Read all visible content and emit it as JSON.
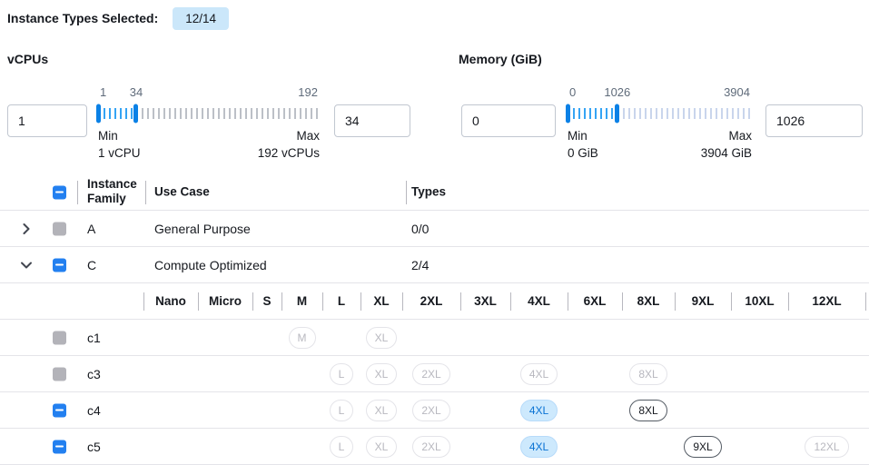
{
  "header": {
    "label": "Instance Types Selected:",
    "badge": "12/14"
  },
  "filters": {
    "vcpus": {
      "title": "vCPUs",
      "min_value": "1",
      "max_value": "34",
      "scale_labels": [
        "1",
        "34",
        "192"
      ],
      "min_label": "Min",
      "min_sub": "1 vCPU",
      "max_label": "Max",
      "max_sub": "192 vCPUs"
    },
    "memory": {
      "title": "Memory (GiB)",
      "min_value": "0",
      "max_value": "1026",
      "scale_labels": [
        "0",
        "1026",
        "3904"
      ],
      "min_label": "Min",
      "min_sub": "0 GiB",
      "max_label": "Max",
      "max_sub": "3904 GiB"
    }
  },
  "table": {
    "columns": {
      "family": "Instance Family",
      "use_case": "Use Case",
      "types": "Types"
    },
    "select_all_state": "indeterminate",
    "family_rows": [
      {
        "family": "A",
        "use_case": "General Purpose",
        "types": "0/0",
        "expanded": false,
        "checkbox": "disabled"
      },
      {
        "family": "C",
        "use_case": "Compute Optimized",
        "types": "2/4",
        "expanded": true,
        "checkbox": "indeterminate"
      }
    ],
    "size_columns": [
      "Nano",
      "Micro",
      "S",
      "M",
      "L",
      "XL",
      "2XL",
      "3XL",
      "4XL",
      "6XL",
      "8XL",
      "9XL",
      "10XL",
      "12XL"
    ],
    "instance_rows": [
      {
        "name": "c1",
        "checkbox": "disabled",
        "pills": {
          "M": "disabled",
          "XL": "disabled"
        }
      },
      {
        "name": "c3",
        "checkbox": "disabled",
        "pills": {
          "L": "disabled",
          "XL": "disabled",
          "2XL": "disabled",
          "4XL": "disabled",
          "8XL": "disabled"
        }
      },
      {
        "name": "c4",
        "checkbox": "indeterminate",
        "pills": {
          "L": "disabled",
          "XL": "disabled",
          "2XL": "disabled",
          "4XL": "selected",
          "8XL": "enabled"
        }
      },
      {
        "name": "c5",
        "checkbox": "indeterminate",
        "pills": {
          "L": "disabled",
          "XL": "disabled",
          "2XL": "disabled",
          "4XL": "selected",
          "9XL": "enabled",
          "12XL": "disabled"
        }
      }
    ]
  },
  "colors": {
    "accent_blue": "#2380f0",
    "slider_handle_blue": "#0b81e6",
    "slider_tick_selected": "#35a4f4",
    "badge_bg": "#cbe7fa",
    "selected_pill_bg": "#cde9fd",
    "selected_pill_text": "#0972d3"
  }
}
